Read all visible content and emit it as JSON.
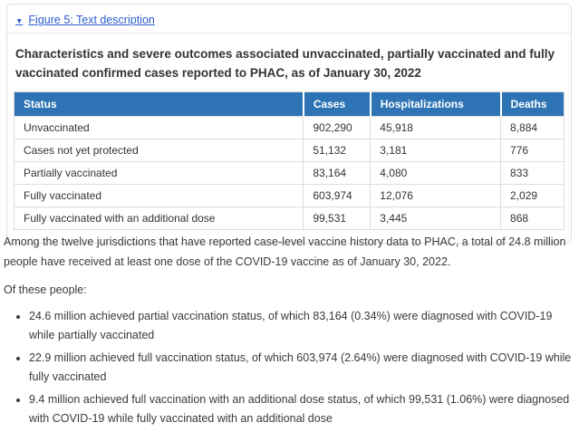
{
  "colors": {
    "link_blue": "#2b5bd0",
    "table_header_bg": "#2e74b5",
    "table_header_text": "#ffffff",
    "body_text": "#333333",
    "panel_border": "#dbe1f0",
    "table_border": "#dddddd"
  },
  "figure_panel": {
    "toggle_icon": "▼",
    "toggle_label": "Figure 5: Text description",
    "heading": "Characteristics and severe outcomes associated unvaccinated, partially vaccinated and fully vaccinated confirmed cases reported to PHAC, as of January 30, 2022",
    "table": {
      "headers": [
        "Status",
        "Cases",
        "Hospitalizations",
        "Deaths"
      ],
      "rows": [
        [
          "Unvaccinated",
          "902,290",
          "45,918",
          "8,884"
        ],
        [
          "Cases not yet protected",
          "51,132",
          "3,181",
          "776"
        ],
        [
          "Partially vaccinated",
          "83,164",
          "4,080",
          "833"
        ],
        [
          "Fully vaccinated",
          "603,974",
          "12,076",
          "2,029"
        ],
        [
          "Fully vaccinated with an additional dose",
          "99,531",
          "3,445",
          "868"
        ]
      ]
    }
  },
  "summary_text": {
    "paragraph": "Among the twelve jurisdictions that have reported case-level vaccine history data to PHAC, a total of 24.8 million people have received at least one dose of the COVID-19 vaccine as of January 30, 2022.",
    "intro": "Of these people:",
    "bullets": [
      "24.6 million achieved partial vaccination status, of which 83,164 (0.34%) were diagnosed with COVID-19 while partially vaccinated",
      "22.9 million achieved full vaccination status, of which 603,974 (2.64%) were diagnosed with COVID-19 while fully vaccinated",
      "9.4 million achieved full vaccination with an additional dose status, of which 99,531 (1.06%) were diagnosed with COVID-19 while fully vaccinated with an additional dose"
    ]
  }
}
